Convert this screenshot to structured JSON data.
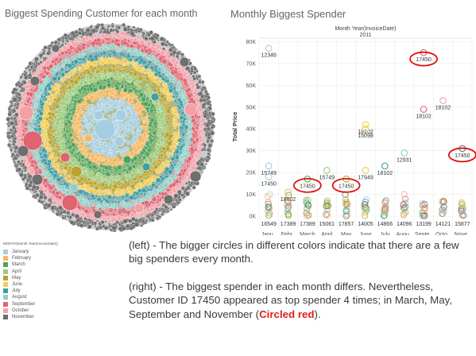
{
  "left_panel": {
    "title": "Biggest Spending Customer for each month"
  },
  "right_panel": {
    "title": "Monthly Biggest Spender"
  },
  "legend": {
    "title": "MONTH(Month Year(InvoiceDate))",
    "items": [
      {
        "label": "January",
        "color": "#a6cee3"
      },
      {
        "label": "February",
        "color": "#f7b864"
      },
      {
        "label": "March",
        "color": "#4ea25a"
      },
      {
        "label": "April",
        "color": "#9ccc7c"
      },
      {
        "label": "May",
        "color": "#b8a32c"
      },
      {
        "label": "June",
        "color": "#f2ce55"
      },
      {
        "label": "July",
        "color": "#3f9ea3"
      },
      {
        "label": "August",
        "color": "#8ecfc6"
      },
      {
        "label": "September",
        "color": "#e06370"
      },
      {
        "label": "October",
        "color": "#f4a0a8"
      },
      {
        "label": "November",
        "color": "#6e6e6e"
      }
    ]
  },
  "caption": {
    "p1": "(left) - The bigger circles in different colors indicate that there are a few big spenders every month.",
    "p2_before": "(right) - The biggest spender in each month differs. Nevertheless, Customer ID 17450 appeared as top spender 4 times; in March, May, September and November (",
    "p2_red": "Circled red",
    "p2_after": ")."
  },
  "chart_data": [
    {
      "type": "packed-bubble",
      "title": "Biggest Spending Customer for each month",
      "color_by": "MONTH(Month Year(InvoiceDate))",
      "ring_order_inner_to_outer": [
        "January",
        "February",
        "March",
        "April",
        "May",
        "June",
        "July",
        "August",
        "September",
        "October",
        "November"
      ]
    },
    {
      "type": "scatter",
      "title": "Monthly Biggest Spender",
      "header": "Month Year(InvoiceDate)",
      "header_value": "2011",
      "ylabel": "Total Price",
      "ylim": [
        0,
        82000
      ],
      "yticks": [
        0,
        10000,
        20000,
        30000,
        40000,
        50000,
        60000,
        70000,
        80000
      ],
      "ytick_labels": [
        "0K",
        "10K",
        "20K",
        "30K",
        "40K",
        "50K",
        "60K",
        "70K",
        "80K"
      ],
      "categories": [
        "Janu..",
        "Febr..",
        "March",
        "April",
        "May",
        "June",
        "July",
        "Augu..",
        "Septe..",
        "Octo..",
        "Nove.."
      ],
      "top_points": [
        {
          "month": 0,
          "y": 77000,
          "label": "12346",
          "color": "#a6cee3"
        },
        {
          "month": 0,
          "y": 23000,
          "label": "15749",
          "color": "#a6cee3"
        },
        {
          "month": 0,
          "y": 18000,
          "label": "17450",
          "color": "#a6cee3"
        },
        {
          "month": 1,
          "y": 11000,
          "label": "18102",
          "color": "#f7b864"
        },
        {
          "month": 2,
          "y": 17000,
          "label": "17450",
          "color": "#4ea25a",
          "circled": true
        },
        {
          "month": 3,
          "y": 21000,
          "label": "15749",
          "color": "#9ccc7c"
        },
        {
          "month": 4,
          "y": 17000,
          "label": "17450",
          "color": "#b8a32c",
          "circled": true
        },
        {
          "month": 5,
          "y": 42000,
          "label": "18102",
          "color": "#f2ce55"
        },
        {
          "month": 5,
          "y": 40000,
          "label": "15098",
          "color": "#f2ce55"
        },
        {
          "month": 5,
          "y": 21000,
          "label": "17949",
          "color": "#f2ce55"
        },
        {
          "month": 6,
          "y": 23000,
          "label": "18102",
          "color": "#3f9ea3"
        },
        {
          "month": 7,
          "y": 29000,
          "label": "12931",
          "color": "#8ecfc6"
        },
        {
          "month": 8,
          "y": 75000,
          "label": "17450",
          "color": "#e06370",
          "circled": true
        },
        {
          "month": 8,
          "y": 49000,
          "label": "18102",
          "color": "#e06370"
        },
        {
          "month": 9,
          "y": 53000,
          "label": "18102",
          "color": "#f4a0a8"
        },
        {
          "month": 10,
          "y": 31000,
          "label": "17450",
          "color": "#6e6e6e",
          "circled": true
        }
      ],
      "bottom_labels": [
        "16549",
        "17389",
        "17389",
        "15061",
        "17857",
        "14005",
        "14866",
        "14096",
        "13199",
        "14121",
        "15877"
      ]
    }
  ]
}
